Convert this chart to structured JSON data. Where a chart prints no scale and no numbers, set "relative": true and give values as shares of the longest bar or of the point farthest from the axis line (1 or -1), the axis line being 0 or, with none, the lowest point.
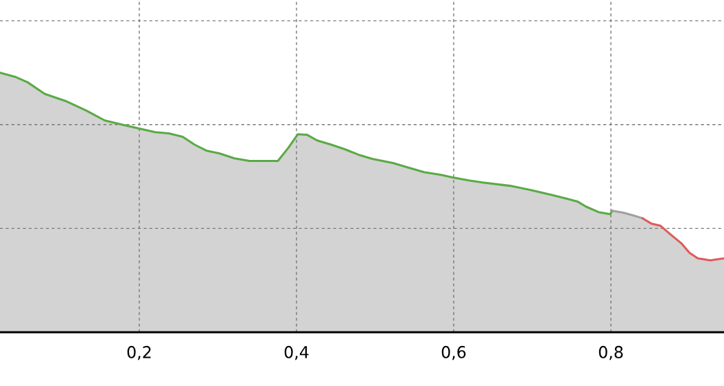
{
  "chart_data": {
    "type": "area",
    "relative": true,
    "tick_labels": "x",
    "grid": true,
    "xlim": [
      0.0228,
      0.9439
    ],
    "xticks": [
      {
        "value": 0.2,
        "label": "0,2"
      },
      {
        "value": 0.4,
        "label": "0,4"
      },
      {
        "value": 0.6,
        "label": "0,6"
      },
      {
        "value": 0.8,
        "label": "0,8"
      }
    ],
    "series": [
      {
        "color": "#5aaa46",
        "x": [
          0.0228,
          0.0421,
          0.0579,
          0.0798,
          0.1061,
          0.1325,
          0.1561,
          0.1807,
          0.2,
          0.2202,
          0.2377,
          0.2553,
          0.2702,
          0.286,
          0.3018,
          0.3211,
          0.3404,
          0.3561,
          0.3763,
          0.3895,
          0.4018,
          0.4132,
          0.4263,
          0.4439,
          0.4614,
          0.4789,
          0.4965,
          0.5228,
          0.5404,
          0.5623,
          0.5842,
          0.5991,
          0.6193,
          0.6368,
          0.6719,
          0.6982,
          0.7246,
          0.7421,
          0.7579,
          0.7684,
          0.7842,
          0.7991,
          0.8018
        ],
        "values": [
          1.0,
          0.984,
          0.963,
          0.918,
          0.891,
          0.854,
          0.816,
          0.798,
          0.785,
          0.771,
          0.766,
          0.753,
          0.723,
          0.699,
          0.689,
          0.67,
          0.66,
          0.66,
          0.66,
          0.71,
          0.763,
          0.761,
          0.739,
          0.723,
          0.705,
          0.684,
          0.668,
          0.652,
          0.636,
          0.617,
          0.606,
          0.596,
          0.585,
          0.577,
          0.564,
          0.548,
          0.529,
          0.516,
          0.503,
          0.484,
          0.463,
          0.455,
          0.468
        ]
      },
      {
        "color": "#a0a0a0",
        "x": [
          0.8018,
          0.8167,
          0.8298,
          0.8404
        ],
        "values": [
          0.468,
          0.46,
          0.449,
          0.439
        ]
      },
      {
        "color": "#e05a5a",
        "x": [
          0.8404,
          0.8518,
          0.8632,
          0.8754,
          0.8895,
          0.9,
          0.9105,
          0.9263,
          0.9439
        ],
        "values": [
          0.439,
          0.418,
          0.41,
          0.378,
          0.343,
          0.306,
          0.285,
          0.277,
          0.285
        ]
      }
    ]
  }
}
